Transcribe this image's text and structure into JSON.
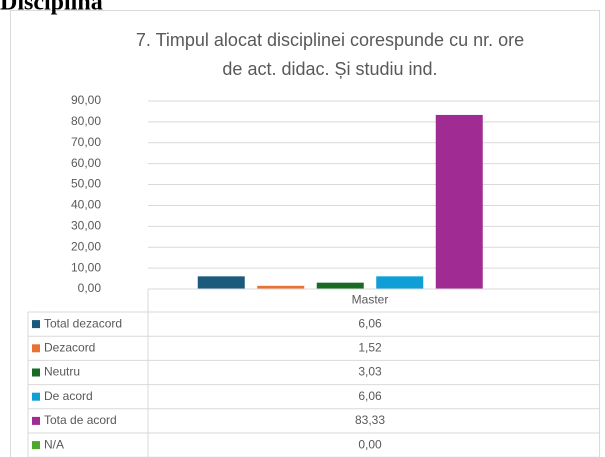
{
  "page_heading": "Disciplina",
  "chart_data": {
    "type": "bar",
    "title": [
      "7. Timpul alocat disciplinei corespunde cu nr. ore",
      "de act. didac. Și studiu ind."
    ],
    "categories": [
      "Master"
    ],
    "series": [
      {
        "name": "Total dezacord",
        "color": "#1b5a7a",
        "values": [
          6.06
        ],
        "value_labels": [
          "6,06"
        ]
      },
      {
        "name": "Dezacord",
        "color": "#e97132",
        "values": [
          1.52
        ],
        "value_labels": [
          "1,52"
        ]
      },
      {
        "name": "Neutru",
        "color": "#196b24",
        "values": [
          3.03
        ],
        "value_labels": [
          "3,03"
        ]
      },
      {
        "name": "De acord",
        "color": "#0f9ed5",
        "values": [
          6.06
        ],
        "value_labels": [
          "6,06"
        ]
      },
      {
        "name": "Tota de acord",
        "color": "#a02b93",
        "values": [
          83.33
        ],
        "value_labels": [
          "83,33"
        ]
      },
      {
        "name": "N/A",
        "color": "#4ea72e",
        "values": [
          0
        ],
        "value_labels": [
          "0,00"
        ]
      }
    ],
    "ylim": [
      0,
      90
    ],
    "yticks": [
      {
        "value": 0,
        "label": "0,00"
      },
      {
        "value": 10,
        "label": "10,00"
      },
      {
        "value": 20,
        "label": "20,00"
      },
      {
        "value": 30,
        "label": "30,00"
      },
      {
        "value": 40,
        "label": "40,00"
      },
      {
        "value": 50,
        "label": "50,00"
      },
      {
        "value": 60,
        "label": "60,00"
      },
      {
        "value": 70,
        "label": "70,00"
      },
      {
        "value": 80,
        "label": "80,00"
      },
      {
        "value": 90,
        "label": "90,00"
      }
    ],
    "grid": true,
    "data_table": true
  }
}
